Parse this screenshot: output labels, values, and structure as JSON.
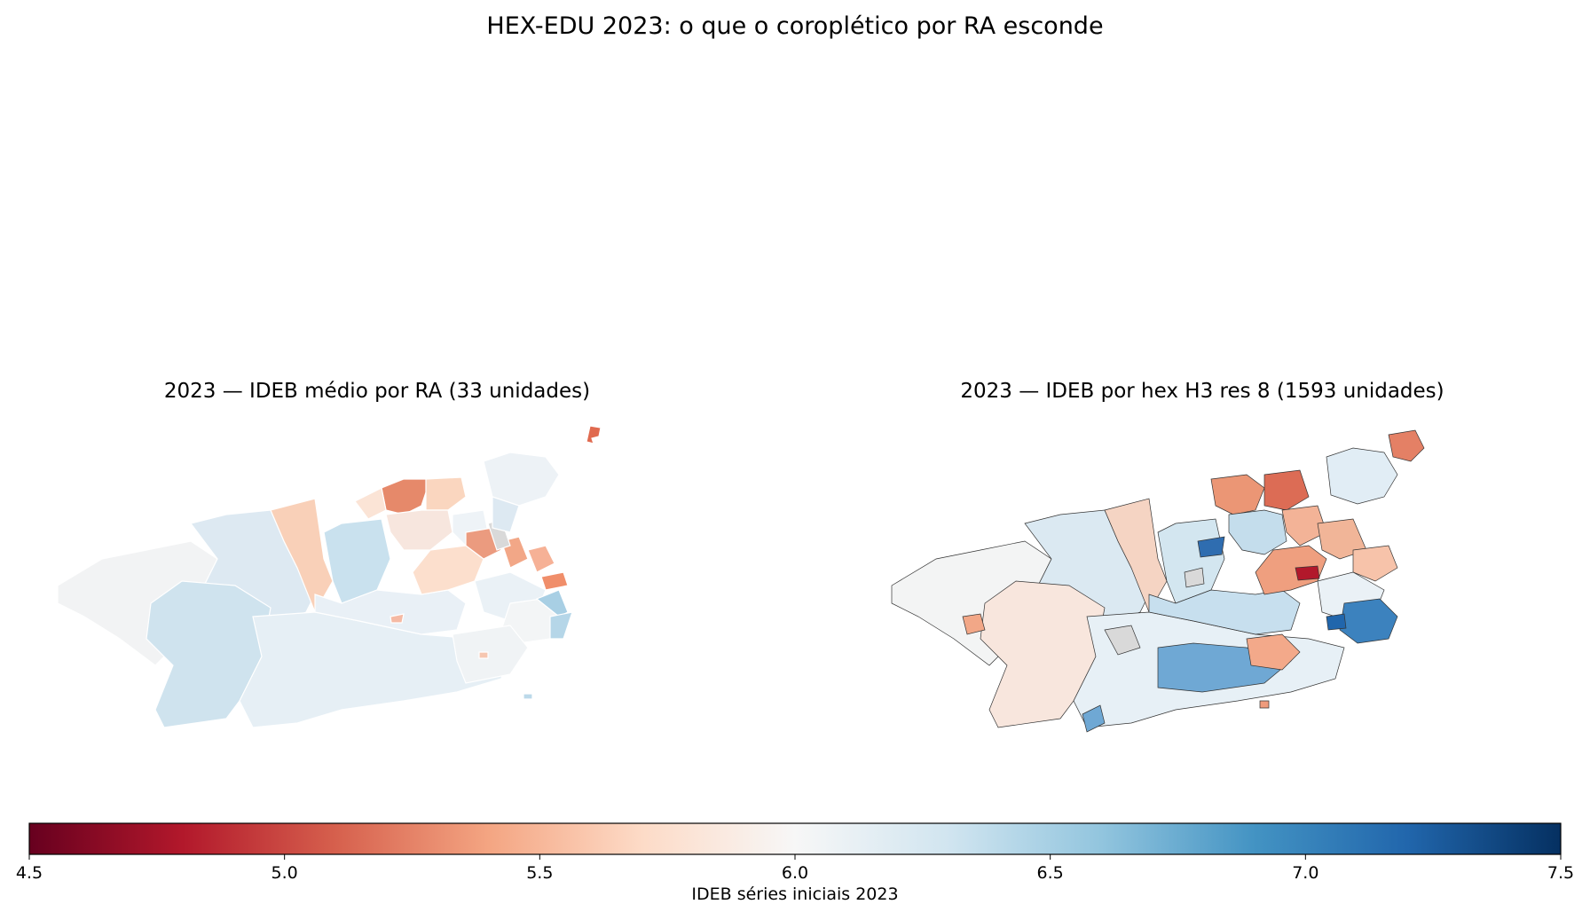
{
  "figure": {
    "title": "HEX-EDU 2023: o que o coroplético por RA esconde"
  },
  "panels": [
    {
      "title": "2023 — IDEB médio por RA (33 unidades)",
      "kind": "choropleth-ra"
    },
    {
      "title": "2023 — IDEB por hex H3 res 8 (1593 unidades)",
      "kind": "hex-h3"
    }
  ],
  "colorbar": {
    "colormap": "RdBu",
    "vmin": 4.5,
    "vmax": 7.5,
    "ticks": [
      "4.5",
      "5.0",
      "5.5",
      "6.0",
      "6.5",
      "7.0",
      "7.5"
    ],
    "label": "IDEB séries iniciais 2023",
    "stops": [
      "#67001f",
      "#b2182b",
      "#d6604d",
      "#f4a582",
      "#fddbc7",
      "#f7f7f7",
      "#d1e5f0",
      "#92c5de",
      "#4393c3",
      "#2166ac",
      "#053061"
    ]
  },
  "colors": {
    "no_data": "#d9d9d9",
    "border_left": "#ffffff",
    "border_right": "#333333"
  }
}
